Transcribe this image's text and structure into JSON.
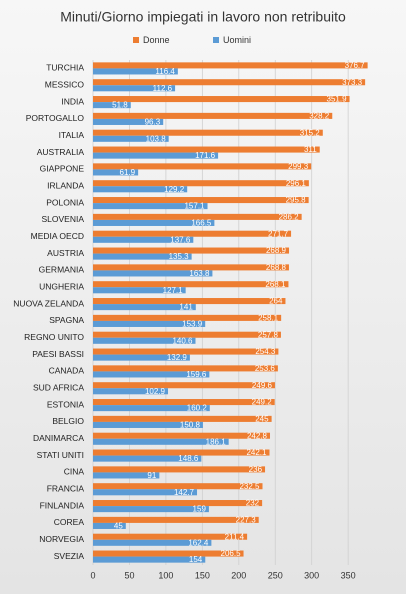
{
  "chart_data": {
    "type": "bar",
    "orientation": "horizontal",
    "title": "Minuti/Giorno impiegati in lavoro non retribuito",
    "categories": [
      "TURCHIA",
      "MESSICO",
      "INDIA",
      "PORTOGALLO",
      "ITALIA",
      "AUSTRALIA",
      "GIAPPONE",
      "IRLANDA",
      "POLONIA",
      "SLOVENIA",
      "MEDIA OECD",
      "AUSTRIA",
      "GERMANIA",
      "UNGHERIA",
      "NUOVA ZELANDA",
      "SPAGNA",
      "REGNO UNITO",
      "PAESI BASSI",
      "CANADA",
      "SUD AFRICA",
      "ESTONIA",
      "BELGIO",
      "DANIMARCA",
      "STATI UNITI",
      "CINA",
      "FRANCIA",
      "FINLANDIA",
      "COREA",
      "NORVEGIA",
      "SVEZIA"
    ],
    "series": [
      {
        "name": "Donne",
        "color": "#ed7d31",
        "values": [
          376.7,
          373.3,
          351.9,
          328.2,
          315.2,
          311,
          299.3,
          296.1,
          295.8,
          286.2,
          271.7,
          268.9,
          268.8,
          268.1,
          264,
          258.1,
          257.8,
          254.3,
          253.6,
          249.6,
          249.2,
          245,
          242.8,
          242.1,
          236,
          232.5,
          232,
          227.3,
          211.4,
          206.5
        ]
      },
      {
        "name": "Uomini",
        "color": "#5b9bd5",
        "values": [
          116.4,
          112.6,
          51.8,
          96.3,
          103.8,
          171.6,
          61.9,
          129.2,
          157.1,
          166.5,
          137.6,
          135.3,
          163.8,
          127.1,
          141,
          153.9,
          140.6,
          132.9,
          159.6,
          102.9,
          160.2,
          150.8,
          186.1,
          148.6,
          91,
          142.7,
          159,
          45,
          162.4,
          154
        ]
      }
    ],
    "xlim": [
      0,
      400
    ],
    "xticks": [
      0,
      50,
      100,
      150,
      200,
      250,
      300,
      350
    ],
    "grid": true,
    "legend": "top"
  }
}
